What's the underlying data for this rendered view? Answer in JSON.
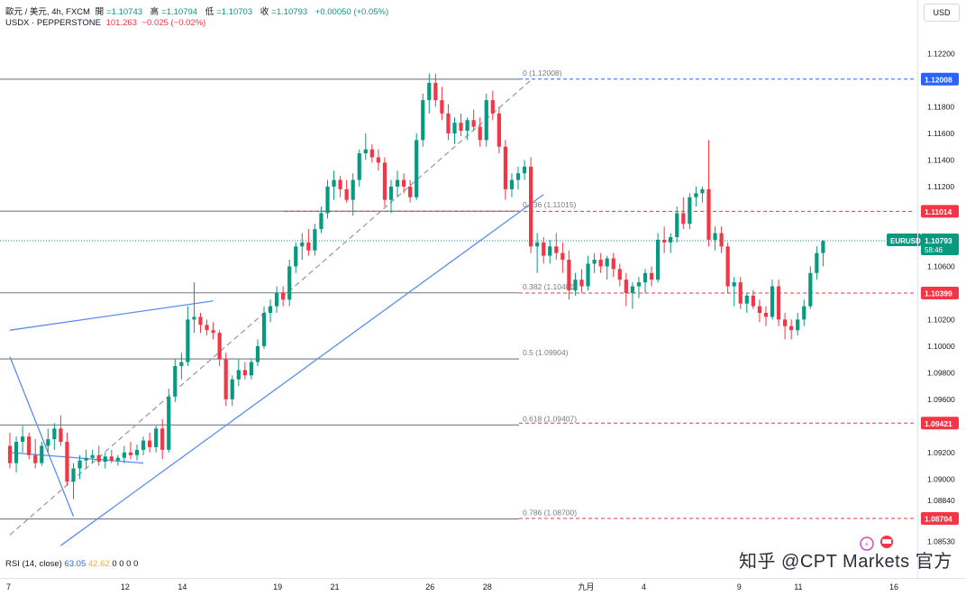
{
  "header": {
    "line1": {
      "symbol": "歐元 / 美元, 4h, FXCM",
      "open_label": "開",
      "open": "=1.10743",
      "high_label": "高",
      "high": "=1.10794",
      "low_label": "低",
      "low": "=1.10703",
      "close_label": "收",
      "close": "=1.10793",
      "change": "+0.00050 (+0.05%)"
    },
    "line2": {
      "symbol": "USDX · PEPPERSTONE",
      "value": "101.263",
      "change": "−0.025 (−0.02%)"
    }
  },
  "currency_button": "USD",
  "rsi_legend": {
    "label": "RSI (14, close)",
    "v1": "63.05",
    "v2": "42.62",
    "rest": "0 0 0 0"
  },
  "watermark": "知乎 @CPT Markets 官方",
  "colors": {
    "up": "#089981",
    "down": "#f23645",
    "trend": "#5b8def",
    "fib_line": "#787b86",
    "price_tag_blue": "#2962ff",
    "price_tag_red": "#f23645",
    "current_tag": "#089981"
  },
  "chart_data": {
    "type": "candlestick",
    "title": "",
    "symbol": "EURUSD",
    "timeframe": "4h",
    "x_ticks": [
      "7",
      "12",
      "14",
      "19",
      "21",
      "26",
      "28",
      "九月",
      "4",
      "9",
      "11",
      "16"
    ],
    "y_ticks": [
      "1.12200",
      "1.11800",
      "1.11600",
      "1.11400",
      "1.11200",
      "1.10600",
      "1.10200",
      "1.10000",
      "1.09800",
      "1.09600",
      "1.09200",
      "1.09000",
      "1.08840",
      "1.08530"
    ],
    "y_range": [
      1.0848,
      1.124
    ],
    "price_tags": [
      {
        "label": "1.12008",
        "value": 1.12008,
        "color": "#2962ff",
        "line": "dashed"
      },
      {
        "label": "1.11014",
        "value": 1.11014,
        "color": "#f23645",
        "line": "dashed"
      },
      {
        "label": "1.10399",
        "value": 1.10399,
        "color": "#f23645",
        "line": "dashed"
      },
      {
        "label": "1.09421",
        "value": 1.09421,
        "color": "#f23645",
        "line": "dashed"
      },
      {
        "label": "1.08704",
        "value": 1.08704,
        "color": "#f23645",
        "line": "dashed"
      }
    ],
    "current": {
      "symbol": "EURUSD",
      "price": "1.10793",
      "value": 1.10793,
      "countdown": "58:46"
    },
    "fib_levels": [
      {
        "label": "0 (1.12008)",
        "value": 1.12008
      },
      {
        "label": "0.236 (1.11015)",
        "value": 1.11015
      },
      {
        "label": "0.382 (1.10401)",
        "value": 1.10401
      },
      {
        "label": "0.5 (1.09904)",
        "value": 1.09904
      },
      {
        "label": "0.618 (1.09407)",
        "value": 1.09407
      },
      {
        "label": "0.786 (1.08700)",
        "value": 1.087
      }
    ],
    "candles": [
      [
        1.0925,
        1.0935,
        1.0908,
        1.0912
      ],
      [
        1.0912,
        1.0932,
        1.0905,
        1.0928
      ],
      [
        1.0928,
        1.094,
        1.092,
        1.0932
      ],
      [
        1.0932,
        1.0935,
        1.0915,
        1.0918
      ],
      [
        1.0918,
        1.093,
        1.0908,
        1.0912
      ],
      [
        1.0912,
        1.0928,
        1.091,
        1.0925
      ],
      [
        1.0925,
        1.0938,
        1.092,
        1.093
      ],
      [
        1.093,
        1.0942,
        1.0922,
        1.0938
      ],
      [
        1.0938,
        1.0948,
        1.0925,
        1.0928
      ],
      [
        1.0928,
        1.0935,
        1.0895,
        1.0898
      ],
      [
        1.0898,
        1.0912,
        1.0885,
        1.0908
      ],
      [
        1.0908,
        1.0918,
        1.09,
        1.0914
      ],
      [
        1.0914,
        1.0922,
        1.0908,
        1.0916
      ],
      [
        1.0916,
        1.0922,
        1.0912,
        1.0918
      ],
      [
        1.0918,
        1.0925,
        1.091,
        1.0913
      ],
      [
        1.0913,
        1.092,
        1.0908,
        1.0917
      ],
      [
        1.0917,
        1.0922,
        1.0912,
        1.0914
      ],
      [
        1.0914,
        1.0918,
        1.091,
        1.0916
      ],
      [
        1.0916,
        1.0925,
        1.0912,
        1.092
      ],
      [
        1.092,
        1.0928,
        1.0915,
        1.0918
      ],
      [
        1.0918,
        1.0926,
        1.0914,
        1.0922
      ],
      [
        1.0922,
        1.0932,
        1.0918,
        1.0929
      ],
      [
        1.0929,
        1.0935,
        1.092,
        1.0924
      ],
      [
        1.0924,
        1.094,
        1.092,
        1.0938
      ],
      [
        1.0938,
        1.0945,
        1.0915,
        1.0922
      ],
      [
        1.0922,
        1.0968,
        1.092,
        1.0962
      ],
      [
        1.0962,
        1.099,
        1.0958,
        1.0985
      ],
      [
        1.0985,
        1.0995,
        1.0975,
        1.0988
      ],
      [
        1.0988,
        1.103,
        1.0985,
        1.102
      ],
      [
        1.102,
        1.1048,
        1.101,
        1.1022
      ],
      [
        1.1022,
        1.1025,
        1.101,
        1.1016
      ],
      [
        1.1016,
        1.102,
        1.1008,
        1.1012
      ],
      [
        1.1012,
        1.1018,
        1.1005,
        1.101
      ],
      [
        1.101,
        1.1012,
        1.0985,
        1.099
      ],
      [
        1.099,
        1.0995,
        1.0955,
        1.096
      ],
      [
        1.096,
        1.0978,
        1.0955,
        1.0975
      ],
      [
        1.0975,
        1.099,
        1.097,
        1.0982
      ],
      [
        1.0982,
        1.0988,
        1.0975,
        1.0978
      ],
      [
        1.0978,
        1.099,
        1.0975,
        1.0988
      ],
      [
        1.0988,
        1.1005,
        1.0985,
        1.1
      ],
      [
        1.1,
        1.103,
        1.0998,
        1.1025
      ],
      [
        1.1025,
        1.1035,
        1.1018,
        1.103
      ],
      [
        1.103,
        1.1045,
        1.1025,
        1.104
      ],
      [
        1.104,
        1.1045,
        1.103,
        1.1035
      ],
      [
        1.1035,
        1.1065,
        1.103,
        1.106
      ],
      [
        1.106,
        1.1078,
        1.1055,
        1.1075
      ],
      [
        1.1075,
        1.1085,
        1.1065,
        1.1078
      ],
      [
        1.1078,
        1.1088,
        1.1068,
        1.1072
      ],
      [
        1.1072,
        1.1092,
        1.1068,
        1.1088
      ],
      [
        1.1088,
        1.1105,
        1.1085,
        1.11
      ],
      [
        1.11,
        1.1125,
        1.1096,
        1.112
      ],
      [
        1.112,
        1.1132,
        1.111,
        1.1125
      ],
      [
        1.1125,
        1.1128,
        1.1112,
        1.1118
      ],
      [
        1.1118,
        1.1125,
        1.1108,
        1.111
      ],
      [
        1.111,
        1.113,
        1.1098,
        1.1125
      ],
      [
        1.1125,
        1.1148,
        1.112,
        1.1145
      ],
      [
        1.1145,
        1.116,
        1.114,
        1.1148
      ],
      [
        1.1148,
        1.1152,
        1.1138,
        1.1142
      ],
      [
        1.1142,
        1.1148,
        1.1132,
        1.1138
      ],
      [
        1.1138,
        1.1142,
        1.1105,
        1.111
      ],
      [
        1.111,
        1.1125,
        1.11,
        1.112
      ],
      [
        1.112,
        1.1132,
        1.1112,
        1.1125
      ],
      [
        1.1125,
        1.113,
        1.1115,
        1.112
      ],
      [
        1.112,
        1.1125,
        1.1108,
        1.1112
      ],
      [
        1.1112,
        1.116,
        1.111,
        1.1155
      ],
      [
        1.1155,
        1.119,
        1.115,
        1.1185
      ],
      [
        1.1185,
        1.1205,
        1.1175,
        1.1198
      ],
      [
        1.1198,
        1.1205,
        1.118,
        1.1185
      ],
      [
        1.1185,
        1.1195,
        1.117,
        1.1175
      ],
      [
        1.1175,
        1.1182,
        1.1155,
        1.116
      ],
      [
        1.116,
        1.1172,
        1.1152,
        1.1168
      ],
      [
        1.1168,
        1.1175,
        1.1158,
        1.1162
      ],
      [
        1.1162,
        1.1172,
        1.1155,
        1.117
      ],
      [
        1.117,
        1.1178,
        1.1162,
        1.1165
      ],
      [
        1.1165,
        1.1172,
        1.115,
        1.1155
      ],
      [
        1.1155,
        1.119,
        1.115,
        1.1185
      ],
      [
        1.1185,
        1.1192,
        1.117,
        1.1175
      ],
      [
        1.1175,
        1.118,
        1.1145,
        1.115
      ],
      [
        1.115,
        1.1155,
        1.111,
        1.1118
      ],
      [
        1.1118,
        1.113,
        1.1112,
        1.1125
      ],
      [
        1.1125,
        1.1135,
        1.1118,
        1.113
      ],
      [
        1.113,
        1.114,
        1.1125,
        1.1135
      ],
      [
        1.1135,
        1.1142,
        1.107,
        1.1075
      ],
      [
        1.1075,
        1.1085,
        1.1055,
        1.1078
      ],
      [
        1.1078,
        1.1082,
        1.1062,
        1.1068
      ],
      [
        1.1068,
        1.108,
        1.1062,
        1.1075
      ],
      [
        1.1075,
        1.1085,
        1.1065,
        1.107
      ],
      [
        1.107,
        1.1078,
        1.1055,
        1.1065
      ],
      [
        1.1065,
        1.1072,
        1.1035,
        1.1042
      ],
      [
        1.1042,
        1.1055,
        1.1038,
        1.105
      ],
      [
        1.105,
        1.1058,
        1.104,
        1.1045
      ],
      [
        1.1045,
        1.1068,
        1.1042,
        1.1062
      ],
      [
        1.1062,
        1.107,
        1.1055,
        1.1065
      ],
      [
        1.1065,
        1.107,
        1.1055,
        1.106
      ],
      [
        1.106,
        1.1068,
        1.105,
        1.1066
      ],
      [
        1.1066,
        1.107,
        1.1052,
        1.1058
      ],
      [
        1.1058,
        1.1062,
        1.1045,
        1.105
      ],
      [
        1.105,
        1.1055,
        1.103,
        1.104
      ],
      [
        1.104,
        1.1048,
        1.1028,
        1.1045
      ],
      [
        1.1045,
        1.1052,
        1.1036,
        1.1048
      ],
      [
        1.1048,
        1.1058,
        1.104,
        1.1055
      ],
      [
        1.1055,
        1.106,
        1.1045,
        1.105
      ],
      [
        1.105,
        1.1085,
        1.1048,
        1.108
      ],
      [
        1.108,
        1.109,
        1.107,
        1.1078
      ],
      [
        1.1078,
        1.1085,
        1.107,
        1.1082
      ],
      [
        1.1082,
        1.1105,
        1.1078,
        1.11
      ],
      [
        1.11,
        1.1112,
        1.1088,
        1.1092
      ],
      [
        1.1092,
        1.1115,
        1.1088,
        1.1112
      ],
      [
        1.1112,
        1.112,
        1.1105,
        1.1115
      ],
      [
        1.1115,
        1.112,
        1.1108,
        1.1118
      ],
      [
        1.1118,
        1.1155,
        1.1075,
        1.108
      ],
      [
        1.108,
        1.109,
        1.1072,
        1.1085
      ],
      [
        1.1085,
        1.109,
        1.107,
        1.1075
      ],
      [
        1.1075,
        1.1078,
        1.104,
        1.1045
      ],
      [
        1.1045,
        1.1052,
        1.103,
        1.1048
      ],
      [
        1.1048,
        1.1052,
        1.1028,
        1.1032
      ],
      [
        1.1032,
        1.104,
        1.1025,
        1.1038
      ],
      [
        1.1038,
        1.1042,
        1.1028,
        1.103
      ],
      [
        1.103,
        1.1035,
        1.1018,
        1.1025
      ],
      [
        1.1025,
        1.103,
        1.1015,
        1.1022
      ],
      [
        1.1022,
        1.105,
        1.102,
        1.1045
      ],
      [
        1.1045,
        1.105,
        1.1015,
        1.102
      ],
      [
        1.102,
        1.1025,
        1.1005,
        1.1015
      ],
      [
        1.1015,
        1.102,
        1.1005,
        1.1012
      ],
      [
        1.1012,
        1.1025,
        1.1008,
        1.102
      ],
      [
        1.102,
        1.1035,
        1.1015,
        1.103
      ],
      [
        1.103,
        1.106,
        1.1028,
        1.1055
      ],
      [
        1.1055,
        1.1075,
        1.105,
        1.107
      ],
      [
        1.107,
        1.108,
        1.106,
        1.1079
      ]
    ],
    "trendlines": [
      {
        "style": "solid",
        "points": [
          [
            0,
            1.0992
          ],
          [
            10,
            1.0872
          ]
        ]
      },
      {
        "style": "solid",
        "points": [
          [
            0,
            1.092
          ],
          [
            21,
            1.0912
          ]
        ]
      },
      {
        "style": "solid",
        "points": [
          [
            0,
            1.1012
          ],
          [
            32,
            1.1034
          ]
        ]
      },
      {
        "style": "solid",
        "points": [
          [
            8,
            1.085
          ],
          [
            84,
            1.1114
          ]
        ]
      },
      {
        "style": "dashed",
        "points": [
          [
            0,
            1.0858
          ],
          [
            82,
            1.12
          ]
        ]
      }
    ]
  }
}
